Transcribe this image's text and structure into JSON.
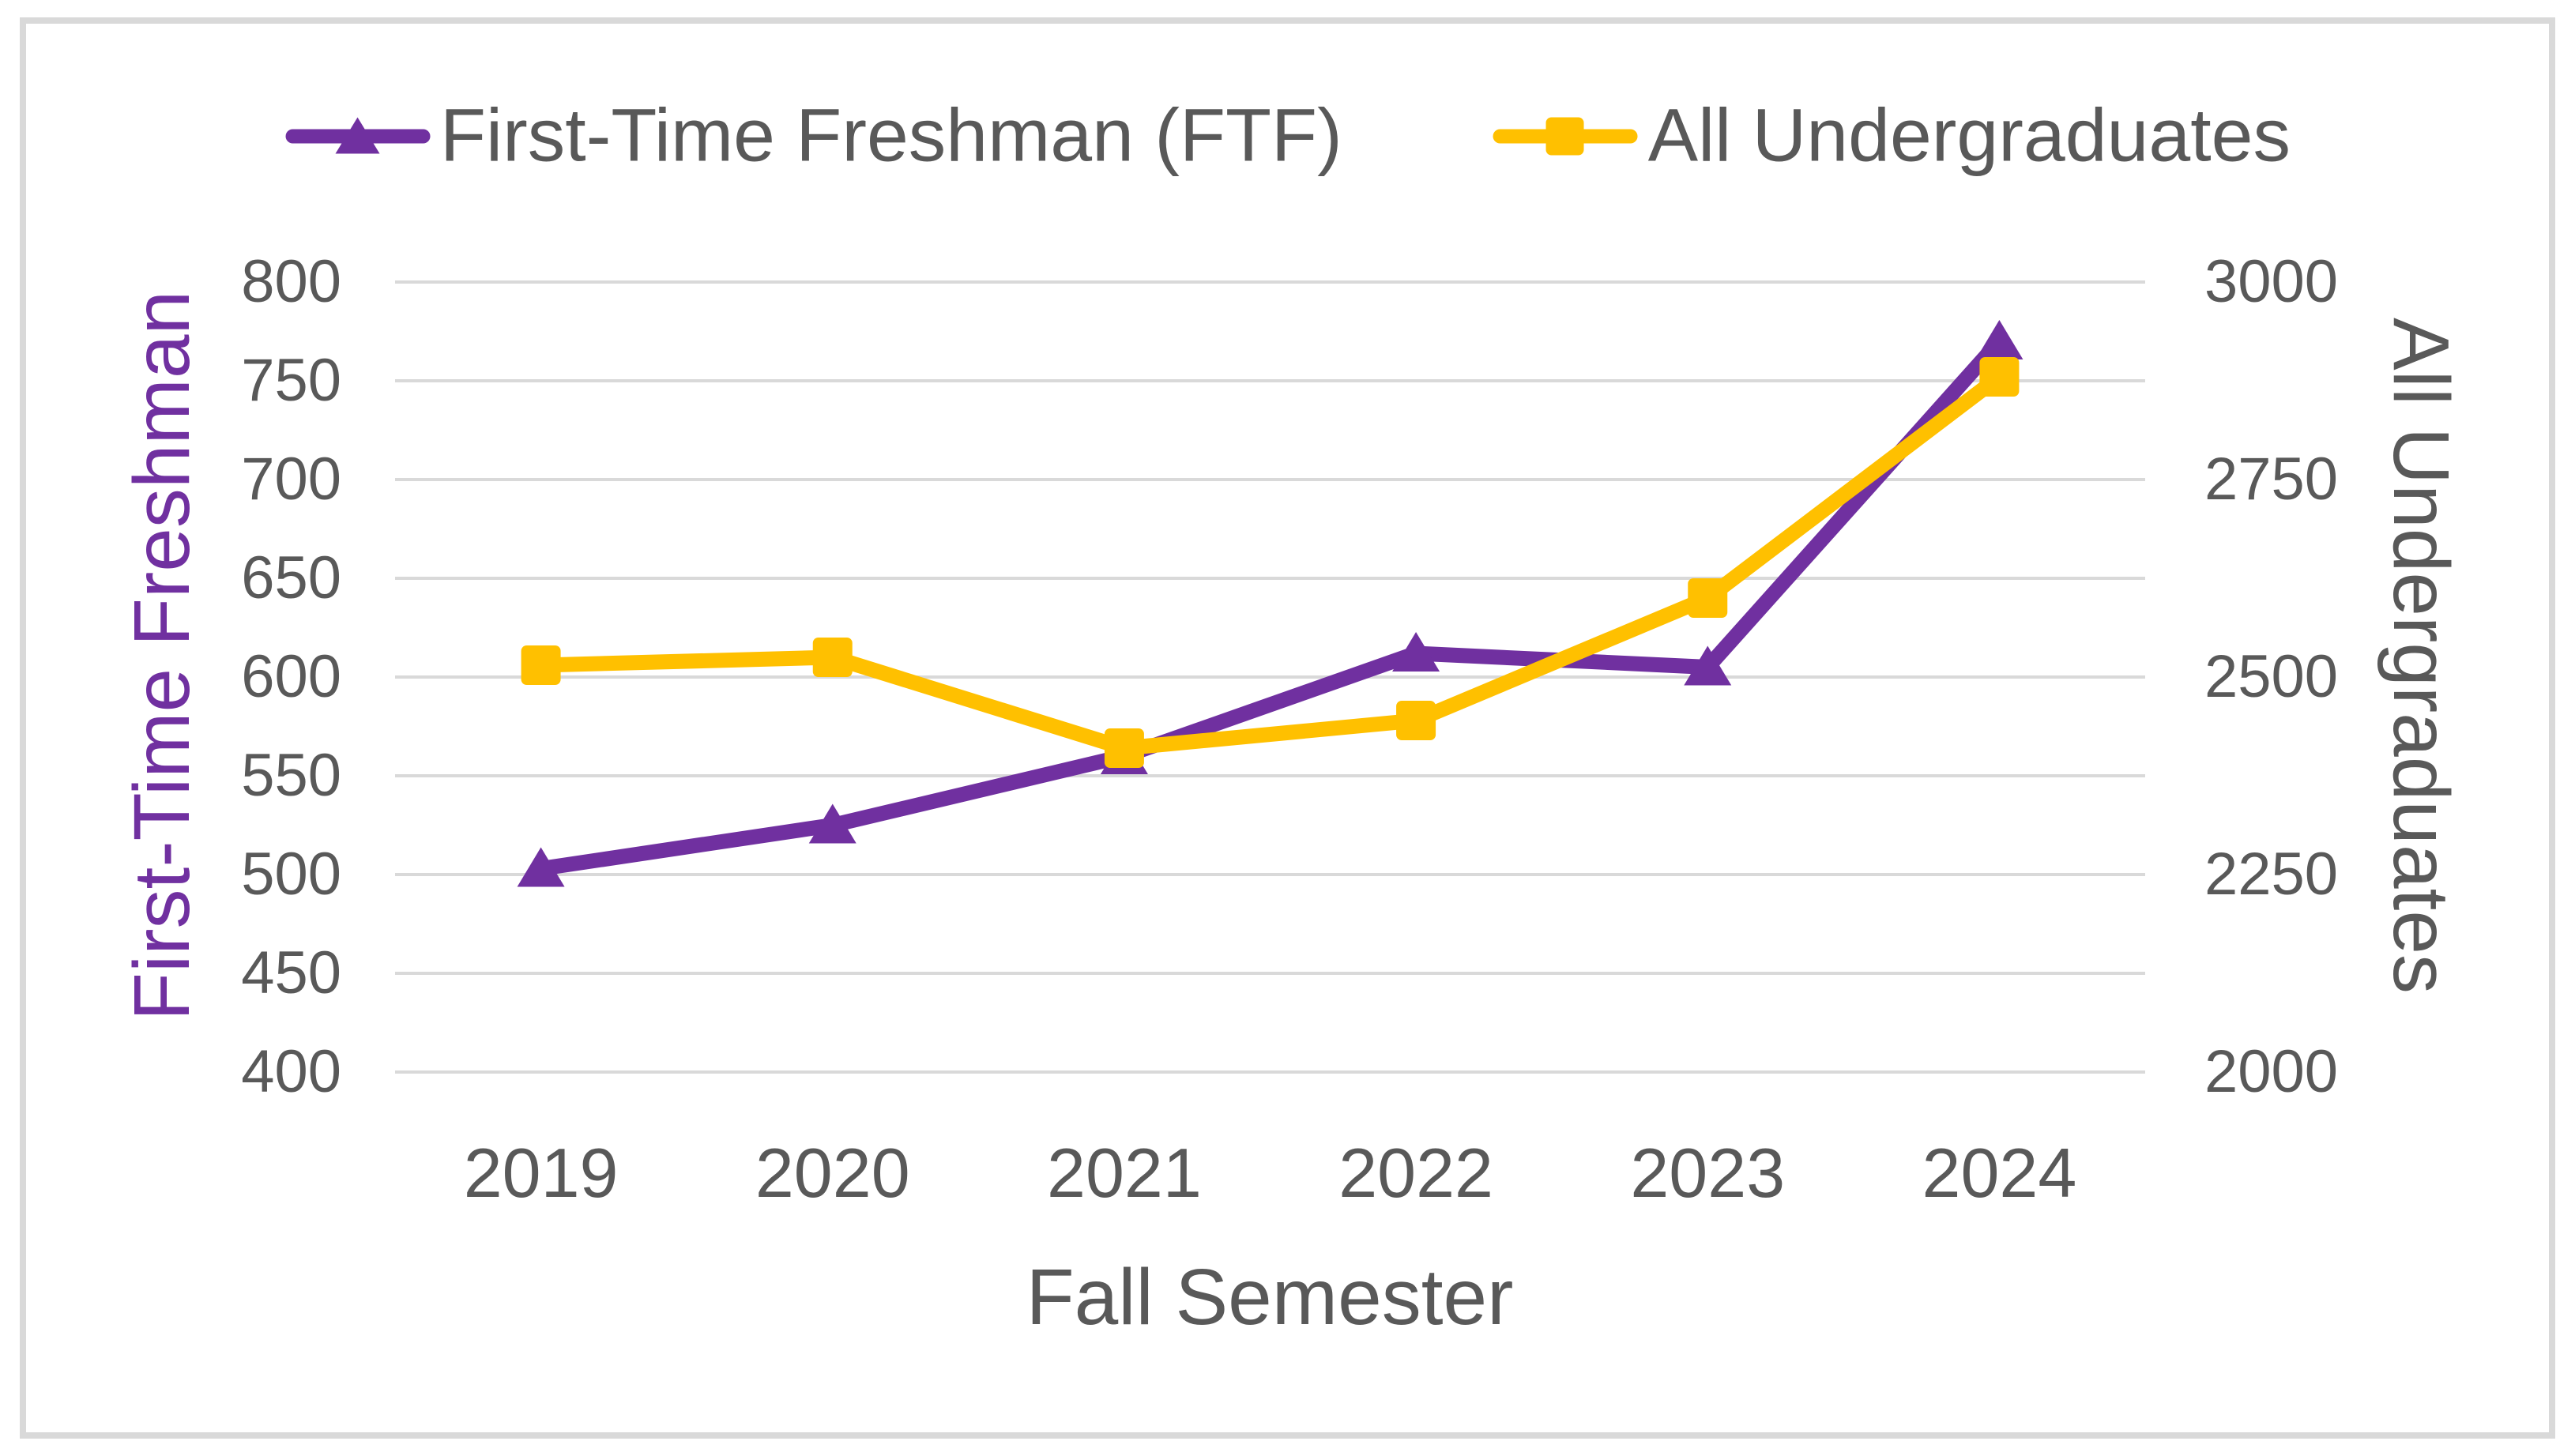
{
  "chart_data": {
    "type": "line",
    "title": "",
    "categories": [
      "2019",
      "2020",
      "2021",
      "2022",
      "2023",
      "2024"
    ],
    "series": [
      {
        "name": "First-Time Freshman (FTF)",
        "axis": "left",
        "marker": "triangle",
        "color": "#7030A0",
        "values": [
          503,
          525,
          560,
          612,
          605,
          770
        ]
      },
      {
        "name": "All Undergraduates",
        "axis": "right",
        "marker": "square",
        "color": "#FFC000",
        "values": [
          2515,
          2525,
          2410,
          2445,
          2600,
          2880
        ]
      }
    ],
    "xlabel": "Fall Semester",
    "ylabel_left": "First-Time Freshman",
    "ylabel_right": "All Undergraduates",
    "ylim_left": [
      400,
      800
    ],
    "ylim_right": [
      2000,
      3000
    ],
    "yticks_left": [
      800,
      750,
      700,
      650,
      600,
      550,
      500,
      450,
      400
    ],
    "yticks_right": [
      3000,
      2750,
      2500,
      2250,
      2000
    ],
    "grid": true,
    "legend_position": "top"
  },
  "colors": {
    "ftf_purple": "#7030A0",
    "aug_gold": "#FFC000",
    "text_gray": "#595959",
    "gridline": "#D9D9D9",
    "chart_border": "#D9D9D9",
    "background": "#FFFFFF"
  }
}
